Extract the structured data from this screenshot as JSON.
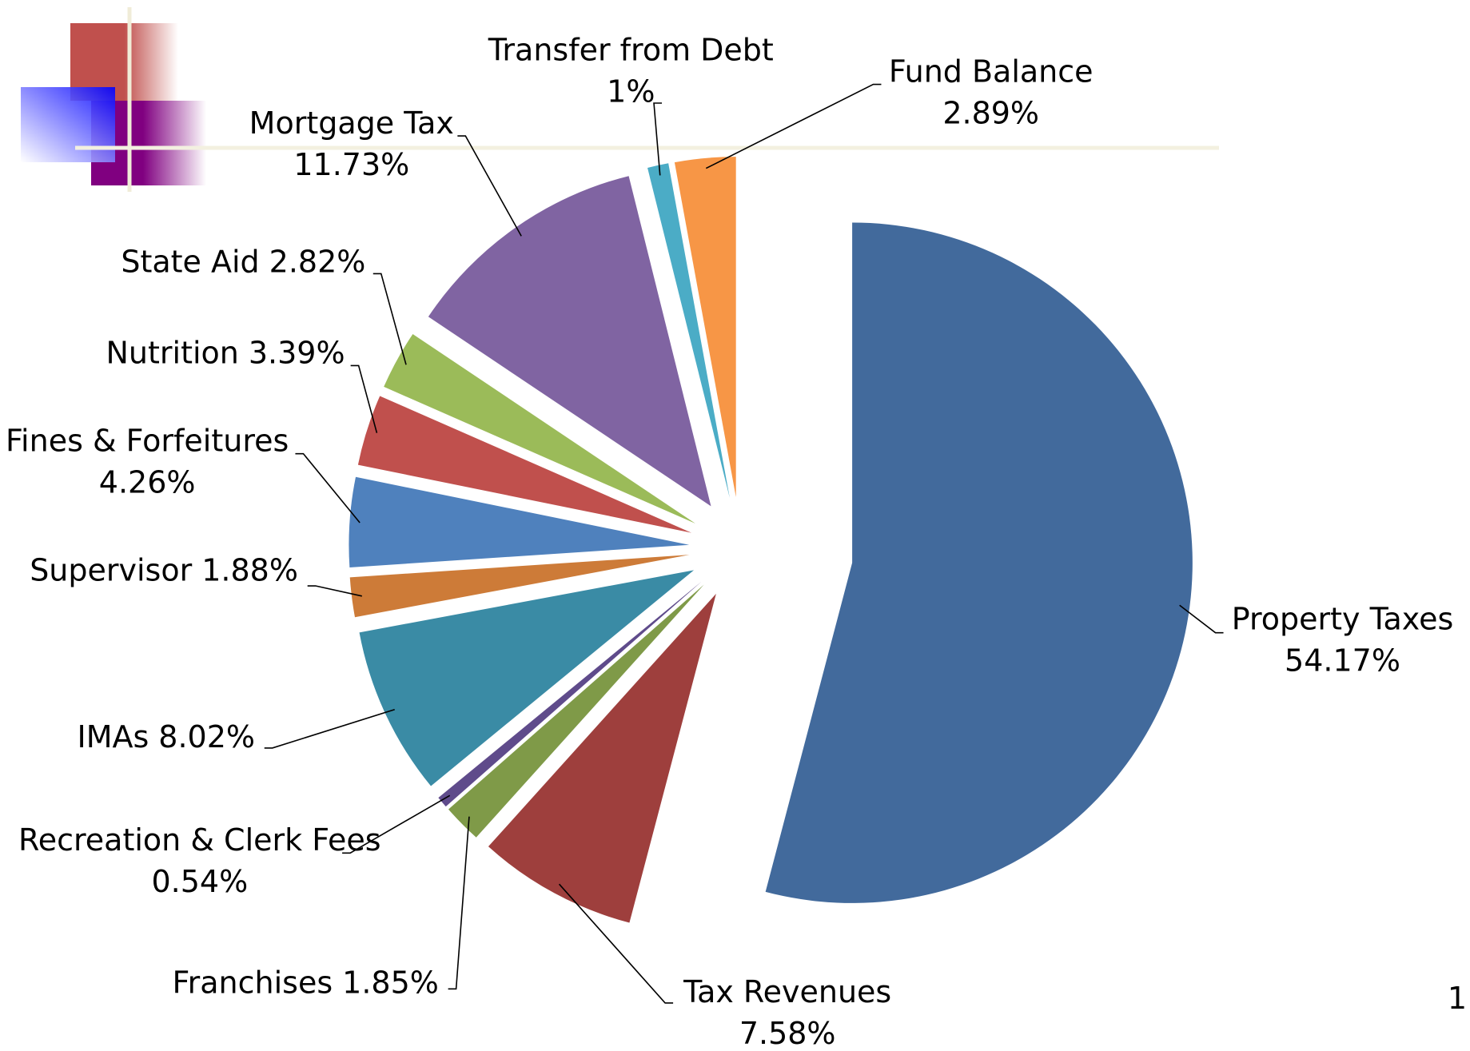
{
  "chart_data": {
    "type": "pie",
    "categories": [
      "Property Taxes",
      "Tax Revenues",
      "Franchises",
      "Recreation & Clerk Fees",
      "IMAs",
      "Supervisor",
      "Fines & Forfeitures",
      "Nutrition",
      "State Aid",
      "Mortgage Tax",
      "Transfer from Debt",
      "Fund Balance"
    ],
    "values": [
      54.17,
      7.58,
      1.85,
      0.54,
      8.02,
      1.88,
      4.26,
      3.39,
      2.82,
      11.73,
      1,
      2.89
    ],
    "value_labels": [
      "54.17%",
      "7.58%",
      "1.85%",
      "0.54%",
      "8.02%",
      "1.88%",
      "4.26%",
      "3.39%",
      "2.82%",
      "11.73%",
      "1%",
      "2.89%"
    ],
    "colors": [
      "#426a9c",
      "#9e3f3d",
      "#7f9a48",
      "#5f4b8b",
      "#3a8ba5",
      "#cd7b38",
      "#4f81bd",
      "#c0504d",
      "#9bbb59",
      "#8064a2",
      "#4bacc6",
      "#f79646"
    ]
  },
  "page_number": "1"
}
